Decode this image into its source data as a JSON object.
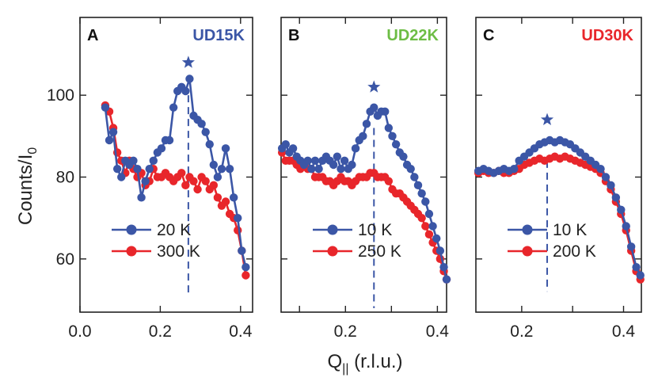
{
  "figure": {
    "ylabel": "Counts/I",
    "ylabel_sub": "0",
    "xlabel": "Q",
    "xlabel_sub": "||",
    "xlabel_units": " (r.l.u.)"
  },
  "colors": {
    "blue": "#3b56a6",
    "red": "#e8262b",
    "green": "#6dbd45",
    "axis": "#222222"
  },
  "chart_data": [
    {
      "type": "line",
      "panel": "A",
      "sample": "UD15K",
      "sample_color": "#3b56a6",
      "xlim": [
        0.0,
        0.43
      ],
      "ylim": [
        47,
        119
      ],
      "xticks": [
        0.0,
        0.2,
        0.4
      ],
      "xtick_labels": [
        "0.0",
        "0.2",
        "0.4"
      ],
      "yticks": [
        60,
        80,
        100
      ],
      "ytick_labels": [
        "60",
        "80",
        "100"
      ],
      "peak_marker_x": 0.27,
      "peak_marker_y": 108,
      "peak_line_range": [
        51,
        100
      ],
      "legend_placement": "lower-left",
      "series": [
        {
          "name": "20 K",
          "color": "#3b56a6",
          "x": [
            0.063,
            0.073,
            0.083,
            0.093,
            0.103,
            0.113,
            0.123,
            0.133,
            0.143,
            0.153,
            0.163,
            0.173,
            0.183,
            0.193,
            0.203,
            0.213,
            0.223,
            0.233,
            0.243,
            0.253,
            0.263,
            0.273,
            0.283,
            0.293,
            0.303,
            0.313,
            0.323,
            0.333,
            0.343,
            0.353,
            0.363,
            0.373,
            0.383,
            0.393,
            0.403,
            0.413
          ],
          "y": [
            97,
            89,
            91,
            82,
            80,
            84,
            83,
            84,
            82,
            75,
            79,
            82,
            84,
            86,
            87,
            89,
            89,
            97,
            101,
            102,
            101,
            104,
            95,
            94,
            93,
            91,
            88,
            83,
            80,
            82,
            87,
            82,
            75,
            70,
            62,
            58
          ]
        },
        {
          "name": "300 K",
          "color": "#e8262b",
          "x": [
            0.063,
            0.073,
            0.083,
            0.093,
            0.103,
            0.113,
            0.123,
            0.133,
            0.143,
            0.153,
            0.163,
            0.173,
            0.183,
            0.193,
            0.203,
            0.213,
            0.223,
            0.233,
            0.243,
            0.253,
            0.263,
            0.273,
            0.283,
            0.293,
            0.303,
            0.313,
            0.323,
            0.333,
            0.343,
            0.353,
            0.363,
            0.373,
            0.383,
            0.393,
            0.403,
            0.413
          ],
          "y": [
            97.5,
            96,
            92,
            86,
            84,
            81,
            84,
            82,
            80,
            81,
            78,
            79,
            82,
            80,
            80,
            81,
            80,
            79,
            80,
            81,
            78,
            80,
            79,
            77,
            80,
            79,
            77,
            78,
            75,
            73,
            74,
            71,
            70,
            67,
            62,
            56
          ]
        }
      ]
    },
    {
      "type": "line",
      "panel": "B",
      "sample": "UD22K",
      "sample_color": "#6dbd45",
      "xlim": [
        0.06,
        0.42
      ],
      "ylim": [
        47,
        119
      ],
      "xticks": [
        0.1,
        0.2,
        0.3,
        0.4
      ],
      "xtick_labels": [
        "",
        "0.2",
        "",
        "0.4"
      ],
      "yticks": [
        60,
        80,
        100
      ],
      "ytick_labels": [
        "",
        "",
        ""
      ],
      "peak_marker_x": 0.262,
      "peak_marker_y": 102,
      "peak_line_range": [
        48,
        92
      ],
      "legend_placement": "lower-left",
      "series": [
        {
          "name": "10 K",
          "color": "#3b56a6",
          "x": [
            0.062,
            0.07,
            0.078,
            0.086,
            0.094,
            0.102,
            0.11,
            0.118,
            0.126,
            0.134,
            0.142,
            0.15,
            0.158,
            0.166,
            0.174,
            0.182,
            0.19,
            0.198,
            0.206,
            0.214,
            0.222,
            0.23,
            0.238,
            0.246,
            0.254,
            0.262,
            0.27,
            0.278,
            0.286,
            0.294,
            0.302,
            0.31,
            0.318,
            0.326,
            0.334,
            0.342,
            0.35,
            0.358,
            0.366,
            0.374,
            0.382,
            0.39,
            0.398,
            0.406,
            0.414,
            0.42
          ],
          "y": [
            87,
            88,
            86,
            87,
            85,
            84,
            83,
            84,
            82,
            84,
            82,
            84,
            85,
            84,
            83,
            85,
            82,
            84,
            82,
            83,
            87,
            89,
            90,
            93,
            96,
            97,
            95,
            96,
            96,
            92,
            90,
            88,
            86,
            85,
            83,
            82,
            80,
            78,
            76,
            74,
            71,
            68,
            65,
            62,
            58,
            55
          ]
        },
        {
          "name": "250 K",
          "color": "#e8262b",
          "x": [
            0.062,
            0.07,
            0.078,
            0.086,
            0.094,
            0.102,
            0.11,
            0.118,
            0.126,
            0.134,
            0.142,
            0.15,
            0.158,
            0.166,
            0.174,
            0.182,
            0.19,
            0.198,
            0.206,
            0.214,
            0.222,
            0.23,
            0.238,
            0.246,
            0.254,
            0.262,
            0.27,
            0.278,
            0.286,
            0.294,
            0.302,
            0.31,
            0.318,
            0.326,
            0.334,
            0.342,
            0.35,
            0.358,
            0.366,
            0.374,
            0.382,
            0.39,
            0.398,
            0.406,
            0.414,
            0.42
          ],
          "y": [
            86,
            84,
            84,
            84,
            83,
            82,
            83,
            82,
            82,
            80,
            80,
            80,
            79,
            79,
            78,
            79,
            80,
            79,
            79,
            78,
            79,
            80,
            80,
            80,
            81,
            81,
            80,
            80,
            80,
            79,
            77,
            76,
            76,
            75,
            74,
            73,
            72,
            71,
            70,
            68,
            66,
            64,
            62,
            60,
            57,
            55
          ]
        }
      ]
    },
    {
      "type": "line",
      "panel": "C",
      "sample": "UD30K",
      "sample_color": "#e8262b",
      "xlim": [
        0.11,
        0.435
      ],
      "ylim": [
        47,
        119
      ],
      "xticks": [
        0.2,
        0.3,
        0.4
      ],
      "xtick_labels": [
        "0.2",
        "",
        "0.4"
      ],
      "yticks": [
        60,
        80,
        100
      ],
      "ytick_labels": [
        "",
        "",
        ""
      ],
      "peak_marker_x": 0.25,
      "peak_marker_y": 94,
      "peak_line_range": [
        52,
        84
      ],
      "legend_placement": "lower-left",
      "series": [
        {
          "name": "10 K",
          "color": "#3b56a6",
          "x": [
            0.115,
            0.125,
            0.135,
            0.145,
            0.155,
            0.165,
            0.175,
            0.185,
            0.195,
            0.205,
            0.215,
            0.225,
            0.235,
            0.245,
            0.255,
            0.265,
            0.275,
            0.285,
            0.295,
            0.305,
            0.315,
            0.325,
            0.335,
            0.345,
            0.355,
            0.365,
            0.375,
            0.385,
            0.395,
            0.405,
            0.415,
            0.425,
            0.433
          ],
          "y": [
            81.5,
            82,
            81.5,
            81,
            81.5,
            82,
            81.5,
            82,
            84,
            85,
            86,
            87,
            88,
            88.5,
            89,
            88.5,
            89,
            88.5,
            88,
            87,
            86,
            85,
            84,
            83,
            82,
            80,
            78,
            75,
            72,
            68,
            63,
            58,
            56
          ]
        },
        {
          "name": "200 K",
          "color": "#e8262b",
          "x": [
            0.115,
            0.125,
            0.135,
            0.145,
            0.155,
            0.165,
            0.175,
            0.185,
            0.195,
            0.205,
            0.215,
            0.225,
            0.235,
            0.245,
            0.255,
            0.265,
            0.275,
            0.285,
            0.295,
            0.305,
            0.315,
            0.325,
            0.335,
            0.345,
            0.355,
            0.365,
            0.375,
            0.385,
            0.395,
            0.405,
            0.415,
            0.425,
            0.433
          ],
          "y": [
            81,
            81.5,
            81,
            81,
            81.5,
            81,
            81,
            81.5,
            82,
            83,
            83.5,
            84,
            84.5,
            84,
            84.5,
            85,
            84.5,
            85,
            84.5,
            84,
            83.5,
            83,
            82.5,
            82,
            81,
            79,
            77,
            74,
            71,
            67,
            62,
            57,
            55
          ]
        }
      ]
    }
  ]
}
